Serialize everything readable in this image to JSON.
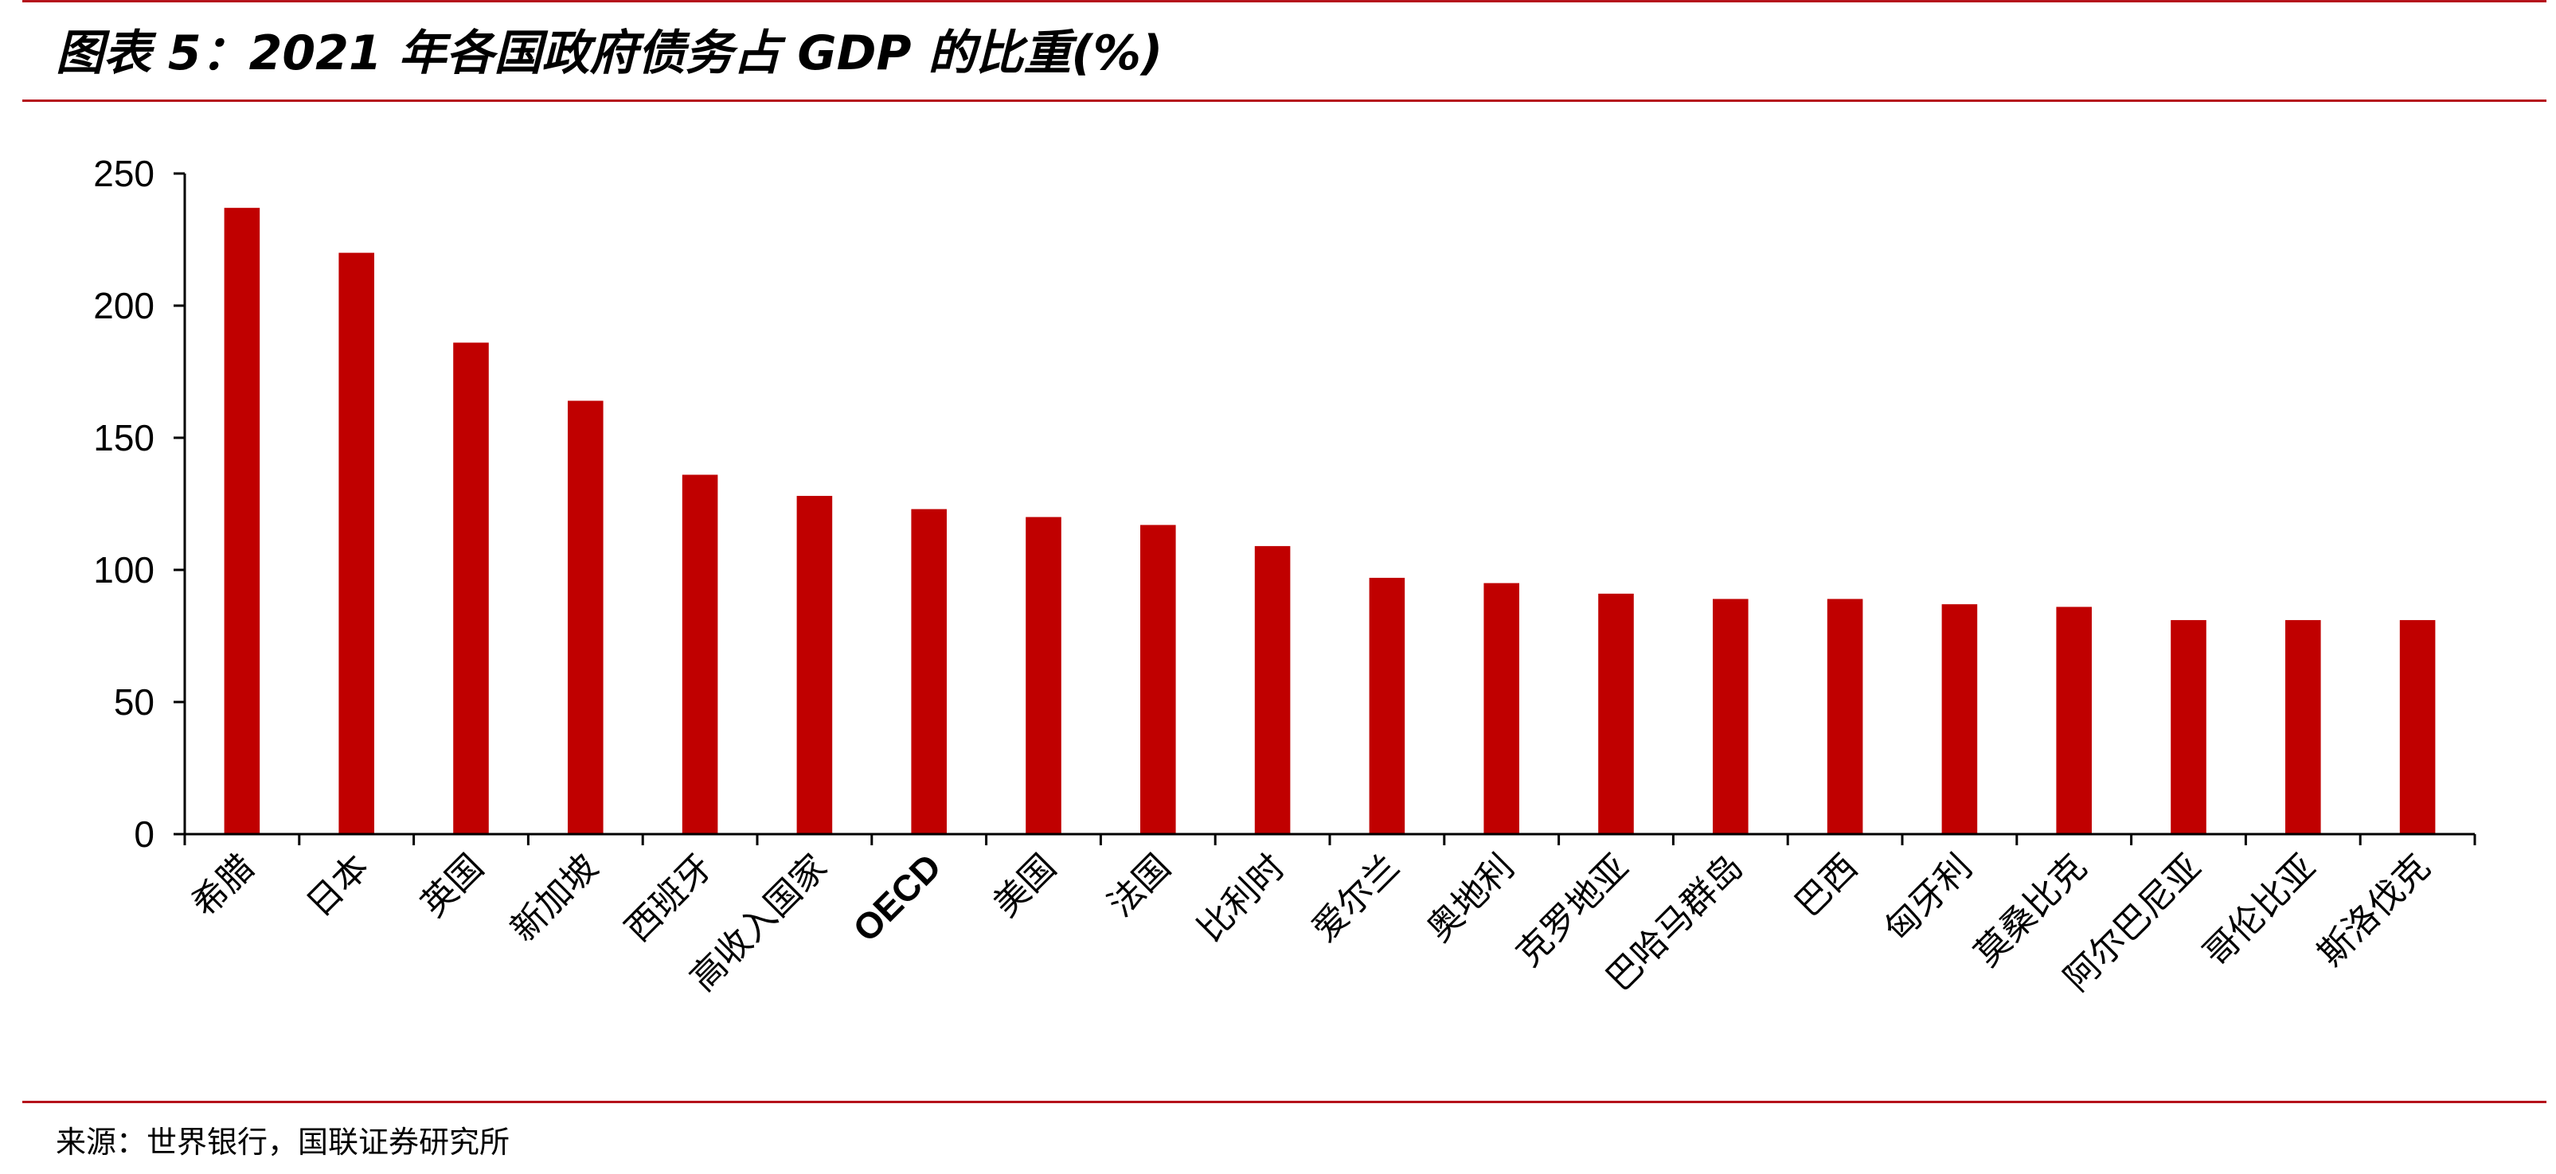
{
  "header": {
    "title": "图表 5：2021 年各国政府债务占 GDP 的比重(%)"
  },
  "footer": {
    "source": "来源：世界银行，国联证券研究所"
  },
  "colors": {
    "accent": "#b5121b",
    "bar": "#c00000"
  },
  "chart_data": {
    "type": "bar",
    "title": "2021 年各国政府债务占 GDP 的比重(%)",
    "xlabel": "",
    "ylabel": "",
    "ylim": [
      0,
      250
    ],
    "yticks": [
      0,
      50,
      100,
      150,
      200,
      250
    ],
    "grid": false,
    "legend": "none",
    "categories": [
      "希腊",
      "日本",
      "英国",
      "新加坡",
      "西班牙",
      "高收入国家",
      "OECD",
      "美国",
      "法国",
      "比利时",
      "爱尔兰",
      "奥地利",
      "克罗地亚",
      "巴哈马群岛",
      "巴西",
      "匈牙利",
      "莫桑比克",
      "阿尔巴尼亚",
      "哥伦比亚",
      "斯洛伐克"
    ],
    "values": [
      237,
      220,
      186,
      164,
      136,
      128,
      123,
      120,
      117,
      109,
      97,
      95,
      91,
      89,
      89,
      87,
      86,
      81,
      81,
      81
    ]
  }
}
